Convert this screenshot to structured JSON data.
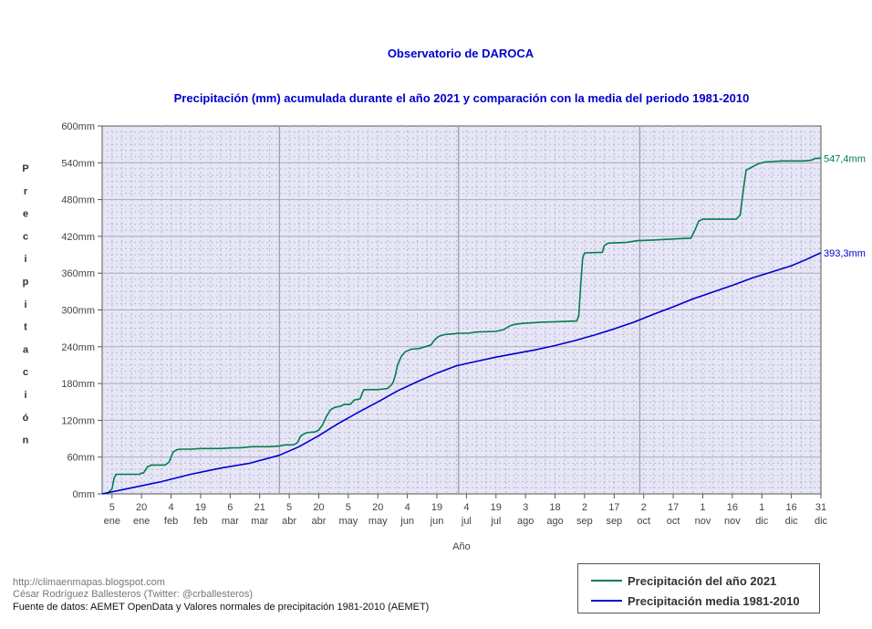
{
  "chart_data": {
    "type": "line",
    "title": "Observatorio de DAROCA",
    "subtitle": "Precipitación (mm) acumulada durante el año 2021 y comparación con la media del periodo 1981-2010",
    "xlabel": "Año",
    "ylabel": "Precipitación",
    "ylim": [
      0,
      600
    ],
    "xlim": [
      0,
      365
    ],
    "y_ticks": [
      {
        "value": 0,
        "label": "0mm"
      },
      {
        "value": 60,
        "label": "60mm"
      },
      {
        "value": 120,
        "label": "120mm"
      },
      {
        "value": 180,
        "label": "180mm"
      },
      {
        "value": 240,
        "label": "240mm"
      },
      {
        "value": 300,
        "label": "300mm"
      },
      {
        "value": 360,
        "label": "360mm"
      },
      {
        "value": 420,
        "label": "420mm"
      },
      {
        "value": 480,
        "label": "480mm"
      },
      {
        "value": 540,
        "label": "540mm"
      },
      {
        "value": 600,
        "label": "600mm"
      }
    ],
    "x_ticks": [
      {
        "day": 5,
        "day_label": "5",
        "month_label": "ene"
      },
      {
        "day": 20,
        "day_label": "20",
        "month_label": "ene"
      },
      {
        "day": 35,
        "day_label": "4",
        "month_label": "feb"
      },
      {
        "day": 50,
        "day_label": "19",
        "month_label": "feb"
      },
      {
        "day": 65,
        "day_label": "6",
        "month_label": "mar"
      },
      {
        "day": 80,
        "day_label": "21",
        "month_label": "mar"
      },
      {
        "day": 95,
        "day_label": "5",
        "month_label": "abr"
      },
      {
        "day": 110,
        "day_label": "20",
        "month_label": "abr"
      },
      {
        "day": 125,
        "day_label": "5",
        "month_label": "may"
      },
      {
        "day": 140,
        "day_label": "20",
        "month_label": "may"
      },
      {
        "day": 155,
        "day_label": "4",
        "month_label": "jun"
      },
      {
        "day": 170,
        "day_label": "19",
        "month_label": "jun"
      },
      {
        "day": 185,
        "day_label": "4",
        "month_label": "jul"
      },
      {
        "day": 200,
        "day_label": "19",
        "month_label": "jul"
      },
      {
        "day": 215,
        "day_label": "3",
        "month_label": "ago"
      },
      {
        "day": 230,
        "day_label": "18",
        "month_label": "ago"
      },
      {
        "day": 245,
        "day_label": "2",
        "month_label": "sep"
      },
      {
        "day": 260,
        "day_label": "17",
        "month_label": "sep"
      },
      {
        "day": 275,
        "day_label": "2",
        "month_label": "oct"
      },
      {
        "day": 290,
        "day_label": "17",
        "month_label": "oct"
      },
      {
        "day": 305,
        "day_label": "1",
        "month_label": "nov"
      },
      {
        "day": 320,
        "day_label": "16",
        "month_label": "nov"
      },
      {
        "day": 335,
        "day_label": "1",
        "month_label": "dic"
      },
      {
        "day": 350,
        "day_label": "16",
        "month_label": "dic"
      },
      {
        "day": 365,
        "day_label": "31",
        "month_label": "dic"
      }
    ],
    "grid": true,
    "legend_position": "bottom-right",
    "series": [
      {
        "name": "Precipitación del año 2021",
        "color": "#00804a",
        "end_label": "547,4mm",
        "points": [
          [
            0,
            0
          ],
          [
            3,
            2
          ],
          [
            5,
            8
          ],
          [
            6,
            25
          ],
          [
            7,
            32
          ],
          [
            9,
            32
          ],
          [
            17,
            32
          ],
          [
            19,
            32
          ],
          [
            20,
            34
          ],
          [
            21,
            34
          ],
          [
            23,
            44
          ],
          [
            25,
            47
          ],
          [
            28,
            47
          ],
          [
            32,
            47
          ],
          [
            34,
            52
          ],
          [
            35,
            60
          ],
          [
            36,
            68
          ],
          [
            38,
            72
          ],
          [
            40,
            73
          ],
          [
            45,
            73
          ],
          [
            50,
            74
          ],
          [
            55,
            74
          ],
          [
            60,
            74
          ],
          [
            66,
            75
          ],
          [
            70,
            75
          ],
          [
            76,
            77
          ],
          [
            85,
            77
          ],
          [
            90,
            78
          ],
          [
            93,
            80
          ],
          [
            97,
            80
          ],
          [
            99,
            83
          ],
          [
            101,
            95
          ],
          [
            104,
            100
          ],
          [
            108,
            101
          ],
          [
            110,
            104
          ],
          [
            112,
            113
          ],
          [
            114,
            127
          ],
          [
            116,
            137
          ],
          [
            118,
            141
          ],
          [
            121,
            143
          ],
          [
            123,
            146
          ],
          [
            126,
            146
          ],
          [
            128,
            153
          ],
          [
            131,
            155
          ],
          [
            132,
            164
          ],
          [
            133,
            170
          ],
          [
            136,
            170
          ],
          [
            140,
            170
          ],
          [
            145,
            172
          ],
          [
            147,
            178
          ],
          [
            148,
            184
          ],
          [
            149,
            195
          ],
          [
            150,
            210
          ],
          [
            152,
            225
          ],
          [
            154,
            232
          ],
          [
            157,
            236
          ],
          [
            161,
            237
          ],
          [
            164,
            240
          ],
          [
            167,
            243
          ],
          [
            169,
            252
          ],
          [
            171,
            257
          ],
          [
            174,
            260
          ],
          [
            178,
            261
          ],
          [
            182,
            262
          ],
          [
            186,
            262
          ],
          [
            190,
            264
          ],
          [
            200,
            265
          ],
          [
            204,
            268
          ],
          [
            207,
            274
          ],
          [
            209,
            276
          ],
          [
            213,
            278
          ],
          [
            223,
            280
          ],
          [
            232,
            281
          ],
          [
            241,
            282
          ],
          [
            242,
            290
          ],
          [
            243,
            340
          ],
          [
            244,
            385
          ],
          [
            245,
            393
          ],
          [
            254,
            394
          ],
          [
            255,
            405
          ],
          [
            257,
            409
          ],
          [
            266,
            410
          ],
          [
            272,
            413
          ],
          [
            280,
            414
          ],
          [
            292,
            416
          ],
          [
            299,
            417
          ],
          [
            301,
            430
          ],
          [
            303,
            445
          ],
          [
            305,
            448
          ],
          [
            310,
            448
          ],
          [
            322,
            448
          ],
          [
            324,
            455
          ],
          [
            325,
            480
          ],
          [
            326,
            505
          ],
          [
            327,
            528
          ],
          [
            330,
            533
          ],
          [
            333,
            538
          ],
          [
            336,
            541
          ],
          [
            340,
            542
          ],
          [
            345,
            543
          ],
          [
            352,
            543
          ],
          [
            356,
            543
          ],
          [
            360,
            544
          ],
          [
            362,
            547
          ],
          [
            365,
            547.4
          ]
        ]
      },
      {
        "name": "Precipitación media 1981-2010",
        "color": "#0000cc",
        "end_label": "393,3mm",
        "points": [
          [
            0,
            0
          ],
          [
            15,
            10
          ],
          [
            30,
            20
          ],
          [
            45,
            32
          ],
          [
            60,
            42
          ],
          [
            75,
            50
          ],
          [
            90,
            63
          ],
          [
            100,
            77
          ],
          [
            110,
            95
          ],
          [
            120,
            115
          ],
          [
            130,
            133
          ],
          [
            140,
            150
          ],
          [
            150,
            168
          ],
          [
            160,
            183
          ],
          [
            170,
            197
          ],
          [
            180,
            209
          ],
          [
            190,
            216
          ],
          [
            200,
            223
          ],
          [
            210,
            229
          ],
          [
            220,
            235
          ],
          [
            230,
            242
          ],
          [
            240,
            250
          ],
          [
            250,
            259
          ],
          [
            260,
            269
          ],
          [
            270,
            280
          ],
          [
            280,
            293
          ],
          [
            290,
            305
          ],
          [
            300,
            318
          ],
          [
            310,
            329
          ],
          [
            320,
            340
          ],
          [
            330,
            352
          ],
          [
            340,
            362
          ],
          [
            350,
            372
          ],
          [
            358,
            383
          ],
          [
            365,
            393.3
          ]
        ]
      }
    ]
  },
  "footer": {
    "url": "http://climaenmapas.blogspot.com",
    "author": "César Rodríguez Ballesteros (Twitter: @crballesteros)",
    "source": "Fuente de datos: AEMET OpenData y Valores normales de precipitación 1981-2010 (AEMET)"
  },
  "legend": {
    "item1": "Precipitación del año 2021",
    "item2": "Precipitación media 1981-2010"
  }
}
